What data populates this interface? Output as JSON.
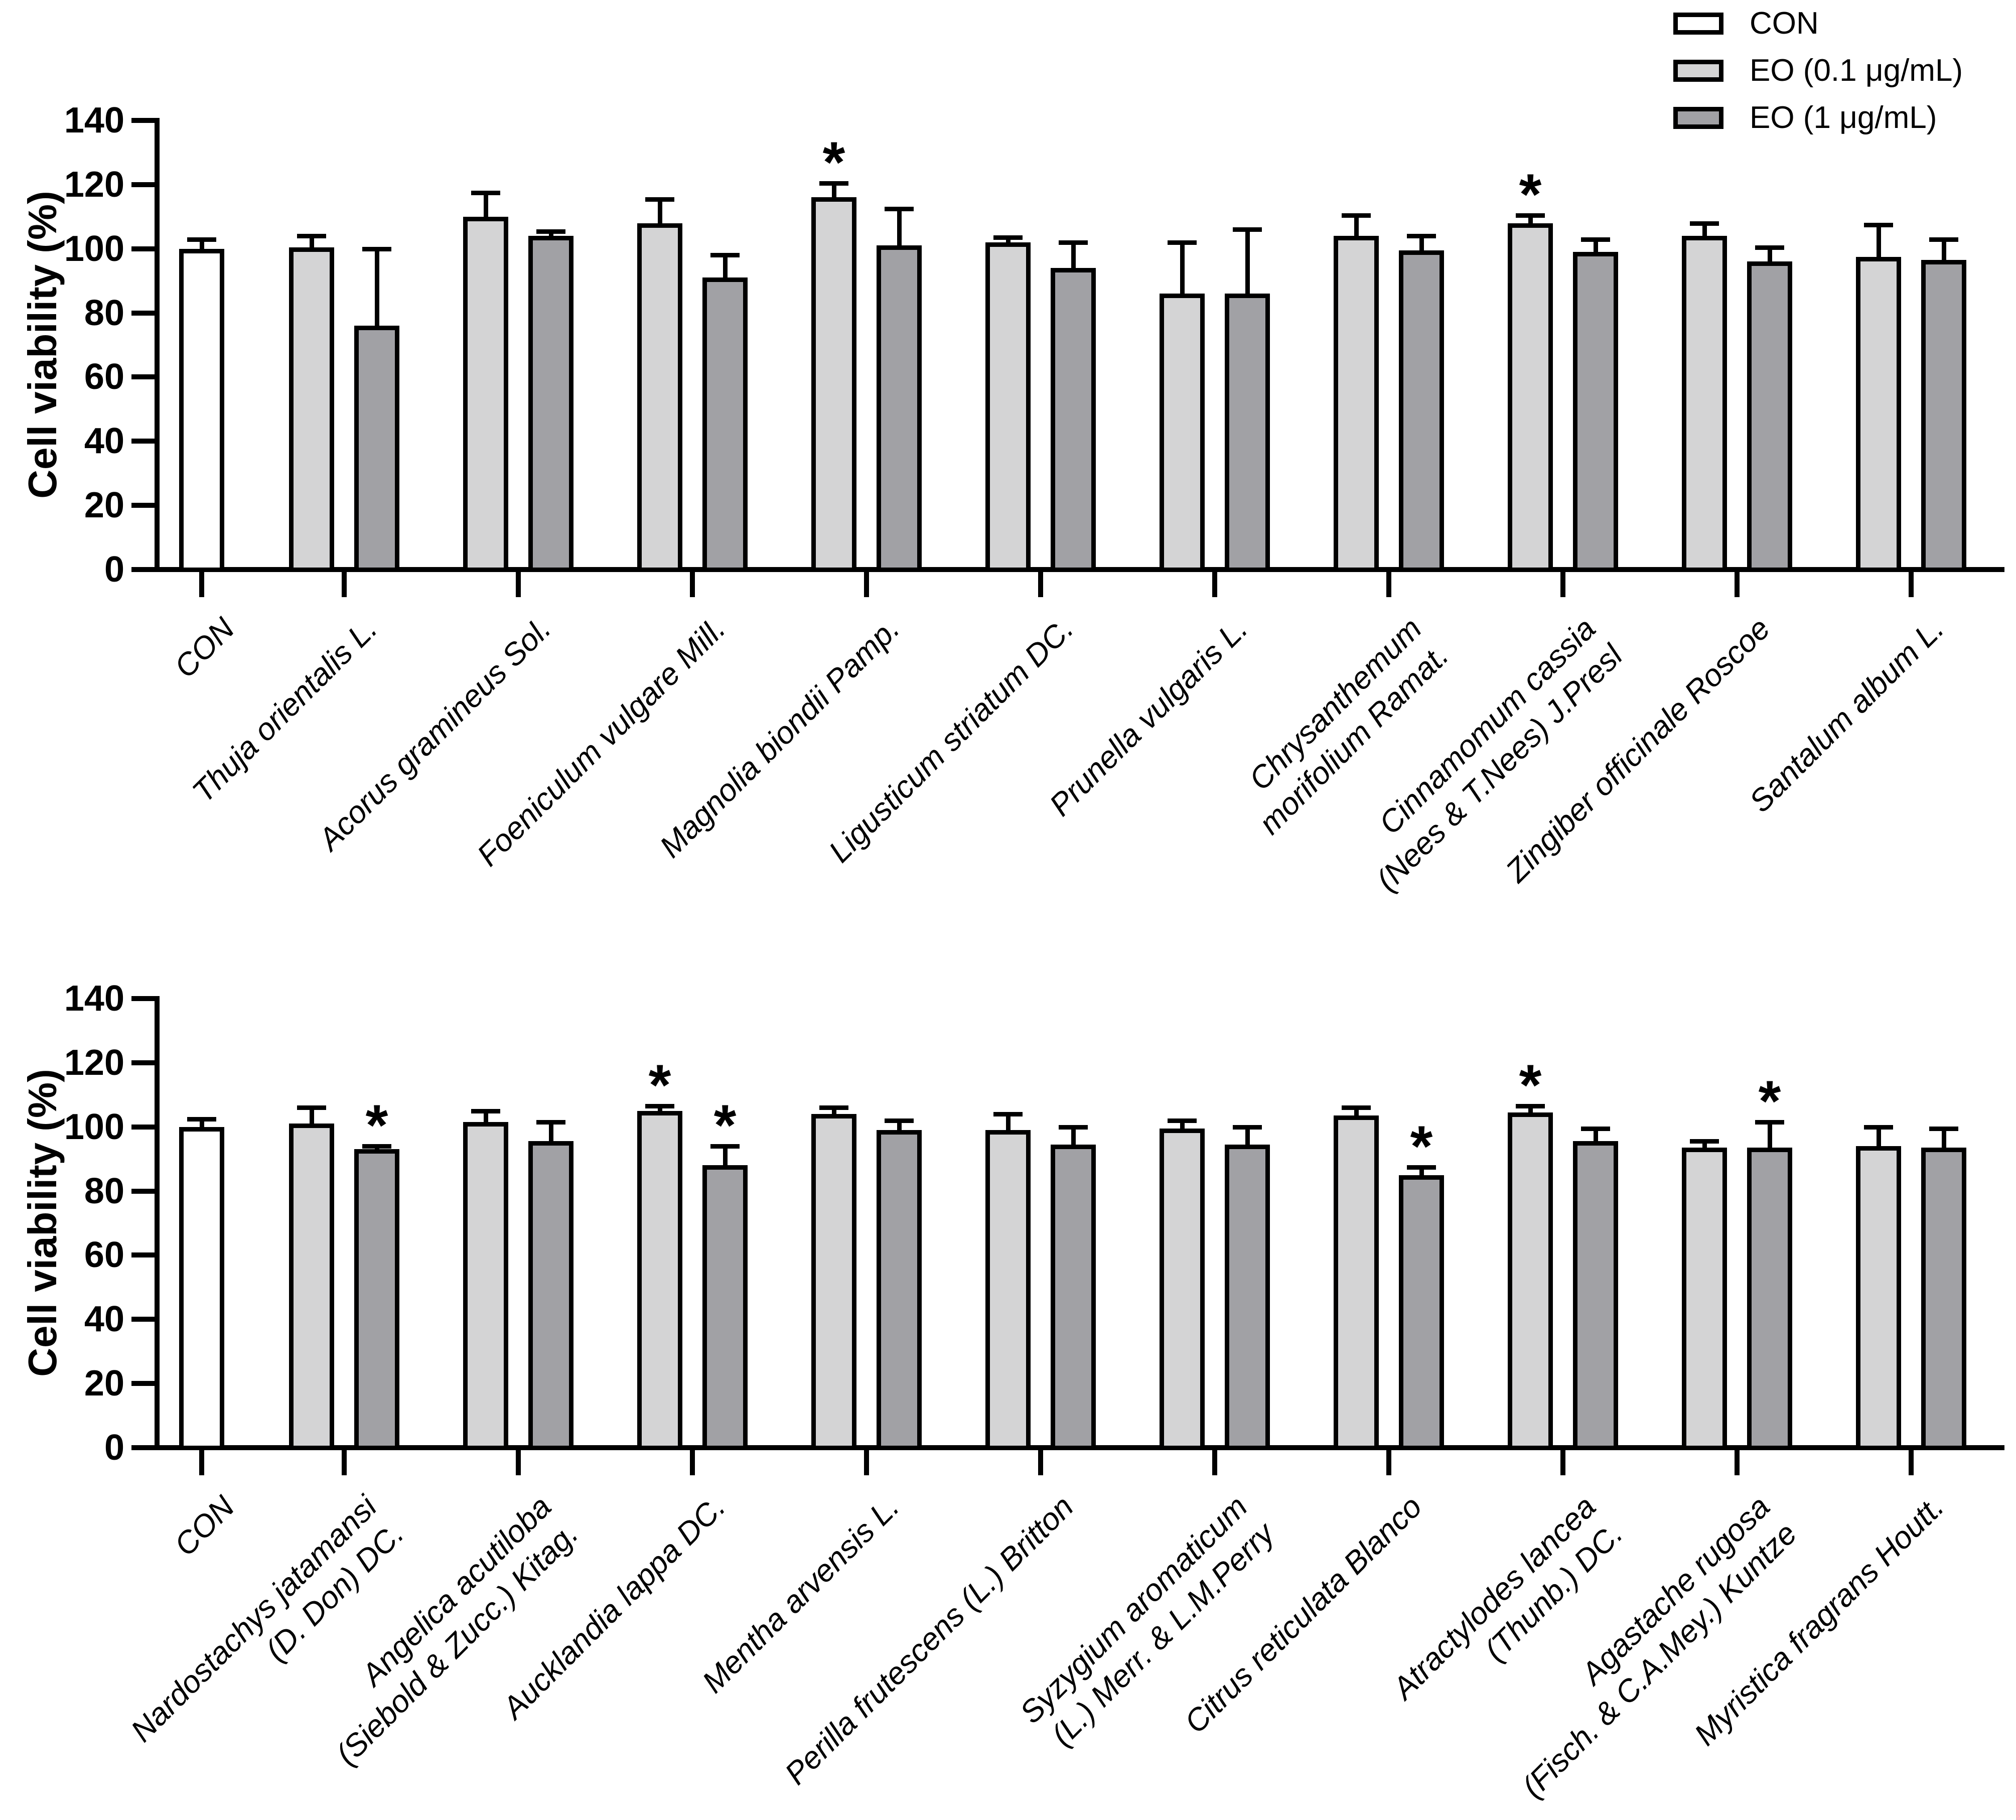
{
  "page": {
    "background": "#ffffff"
  },
  "colors": {
    "white": "#ffffff",
    "light": "#d4d4d5",
    "dark": "#a1a1a5",
    "stroke": "#000000"
  },
  "legend": {
    "position": "top-right",
    "items": [
      {
        "label": "CON",
        "fill_key": "white"
      },
      {
        "label": "EO (0.1 μg/mL)",
        "fill_key": "light"
      },
      {
        "label": "EO (1 μg/mL)",
        "fill_key": "dark"
      }
    ]
  },
  "chart_data": [
    {
      "id": "panel-top",
      "type": "bar",
      "title": "",
      "ylabel": "Cell viability (%)",
      "xlabel": "",
      "ylim": [
        0,
        140
      ],
      "yticks": [
        0,
        20,
        40,
        60,
        80,
        100,
        120,
        140
      ],
      "grid": false,
      "legend_position": "top-right",
      "series": [
        "CON",
        "EO (0.1 μg/mL)",
        "EO (1 μg/mL)"
      ],
      "groups": [
        {
          "label_lines": [
            "CON"
          ],
          "bars": [
            {
              "series": "CON",
              "fill": "white",
              "value": 100,
              "err": 3,
              "sig": false
            }
          ]
        },
        {
          "label_lines": [
            "Thuja orientalis L."
          ],
          "bars": [
            {
              "series": "EO (0.1 μg/mL)",
              "fill": "light",
              "value": 100.5,
              "err": 3.5,
              "sig": false
            },
            {
              "series": "EO (1 μg/mL)",
              "fill": "dark",
              "value": 76,
              "err": 24,
              "sig": false
            }
          ]
        },
        {
          "label_lines": [
            "Acorus gramineus Sol."
          ],
          "bars": [
            {
              "series": "EO (0.1 μg/mL)",
              "fill": "light",
              "value": 110,
              "err": 7.5,
              "sig": false
            },
            {
              "series": "EO (1 μg/mL)",
              "fill": "dark",
              "value": 104,
              "err": 1.5,
              "sig": false
            }
          ]
        },
        {
          "label_lines": [
            "Foeniculum vulgare Mill."
          ],
          "bars": [
            {
              "series": "EO (0.1 μg/mL)",
              "fill": "light",
              "value": 108,
              "err": 7.5,
              "sig": false
            },
            {
              "series": "EO (1 μg/mL)",
              "fill": "dark",
              "value": 91,
              "err": 7,
              "sig": false
            }
          ]
        },
        {
          "label_lines": [
            "Magnolia biondii Pamp."
          ],
          "bars": [
            {
              "series": "EO (0.1 μg/mL)",
              "fill": "light",
              "value": 116,
              "err": 4.5,
              "sig": true
            },
            {
              "series": "EO (1 μg/mL)",
              "fill": "dark",
              "value": 101,
              "err": 11.5,
              "sig": false
            }
          ]
        },
        {
          "label_lines": [
            "Ligusticum striatum DC."
          ],
          "bars": [
            {
              "series": "EO (0.1 μg/mL)",
              "fill": "light",
              "value": 102,
              "err": 1.5,
              "sig": false
            },
            {
              "series": "EO (1 μg/mL)",
              "fill": "dark",
              "value": 94,
              "err": 8,
              "sig": false
            }
          ]
        },
        {
          "label_lines": [
            "Prunella vulgaris L."
          ],
          "bars": [
            {
              "series": "EO (0.1 μg/mL)",
              "fill": "light",
              "value": 86,
              "err": 16,
              "sig": false
            },
            {
              "series": "EO (1 μg/mL)",
              "fill": "dark",
              "value": 86,
              "err": 20,
              "sig": false
            }
          ]
        },
        {
          "label_lines": [
            "Chrysanthemum",
            "morifolium Ramat."
          ],
          "bars": [
            {
              "series": "EO (0.1 μg/mL)",
              "fill": "light",
              "value": 104,
              "err": 6.5,
              "sig": false
            },
            {
              "series": "EO (1 μg/mL)",
              "fill": "dark",
              "value": 99.5,
              "err": 4.5,
              "sig": false
            }
          ]
        },
        {
          "label_lines": [
            "Cinnamomum cassia",
            "(Nees & T.Nees) J.Presl"
          ],
          "bars": [
            {
              "series": "EO (0.1 μg/mL)",
              "fill": "light",
              "value": 108,
              "err": 2.5,
              "sig": true
            },
            {
              "series": "EO (1 μg/mL)",
              "fill": "dark",
              "value": 99,
              "err": 4,
              "sig": false
            }
          ]
        },
        {
          "label_lines": [
            "Zingiber officinale Roscoe"
          ],
          "bars": [
            {
              "series": "EO (0.1 μg/mL)",
              "fill": "light",
              "value": 104,
              "err": 4,
              "sig": false
            },
            {
              "series": "EO (1 μg/mL)",
              "fill": "dark",
              "value": 96,
              "err": 4.5,
              "sig": false
            }
          ]
        },
        {
          "label_lines": [
            "Santalum album L."
          ],
          "bars": [
            {
              "series": "EO (0.1 μg/mL)",
              "fill": "light",
              "value": 97.5,
              "err": 10,
              "sig": false
            },
            {
              "series": "EO (1 μg/mL)",
              "fill": "dark",
              "value": 96.5,
              "err": 6.5,
              "sig": false
            }
          ]
        }
      ]
    },
    {
      "id": "panel-bottom",
      "type": "bar",
      "title": "",
      "ylabel": "Cell viability (%)",
      "xlabel": "",
      "ylim": [
        0,
        140
      ],
      "yticks": [
        0,
        20,
        40,
        60,
        80,
        100,
        120,
        140
      ],
      "grid": false,
      "legend_position": "none",
      "series": [
        "CON",
        "EO (0.1 μg/mL)",
        "EO (1 μg/mL)"
      ],
      "groups": [
        {
          "label_lines": [
            "CON"
          ],
          "bars": [
            {
              "series": "CON",
              "fill": "white",
              "value": 100,
              "err": 2.5,
              "sig": false
            }
          ]
        },
        {
          "label_lines": [
            "Nardostachys jatamansi",
            "(D. Don) DC."
          ],
          "bars": [
            {
              "series": "EO (0.1 μg/mL)",
              "fill": "light",
              "value": 101,
              "err": 5,
              "sig": false
            },
            {
              "series": "EO (1 μg/mL)",
              "fill": "dark",
              "value": 93,
              "err": 1,
              "sig": true
            }
          ]
        },
        {
          "label_lines": [
            "Angelica acutiloba",
            "(Siebold & Zucc.) Kitag."
          ],
          "bars": [
            {
              "series": "EO (0.1 μg/mL)",
              "fill": "light",
              "value": 101.5,
              "err": 3.5,
              "sig": false
            },
            {
              "series": "EO (1 μg/mL)",
              "fill": "dark",
              "value": 95.5,
              "err": 6,
              "sig": false
            }
          ]
        },
        {
          "label_lines": [
            "Aucklandia lappa DC."
          ],
          "bars": [
            {
              "series": "EO (0.1 μg/mL)",
              "fill": "light",
              "value": 105,
              "err": 1.5,
              "sig": true
            },
            {
              "series": "EO (1 μg/mL)",
              "fill": "dark",
              "value": 88,
              "err": 6,
              "sig": true
            }
          ]
        },
        {
          "label_lines": [
            "Mentha arvensis L."
          ],
          "bars": [
            {
              "series": "EO (0.1 μg/mL)",
              "fill": "light",
              "value": 104,
              "err": 2,
              "sig": false
            },
            {
              "series": "EO (1 μg/mL)",
              "fill": "dark",
              "value": 99,
              "err": 3,
              "sig": false
            }
          ]
        },
        {
          "label_lines": [
            "Perilla frutescens (L.) Britton"
          ],
          "bars": [
            {
              "series": "EO (0.1 μg/mL)",
              "fill": "light",
              "value": 99,
              "err": 5,
              "sig": false
            },
            {
              "series": "EO (1 μg/mL)",
              "fill": "dark",
              "value": 94.5,
              "err": 5.5,
              "sig": false
            }
          ]
        },
        {
          "label_lines": [
            "Syzygium aromaticum",
            "(L.) Merr. & L.M.Perry"
          ],
          "bars": [
            {
              "series": "EO (0.1 μg/mL)",
              "fill": "light",
              "value": 99.5,
              "err": 2.5,
              "sig": false
            },
            {
              "series": "EO (1 μg/mL)",
              "fill": "dark",
              "value": 94.5,
              "err": 5.5,
              "sig": false
            }
          ]
        },
        {
          "label_lines": [
            "Citrus reticulata Blanco"
          ],
          "bars": [
            {
              "series": "EO (0.1 μg/mL)",
              "fill": "light",
              "value": 103.5,
              "err": 2.5,
              "sig": false
            },
            {
              "series": "EO (1 μg/mL)",
              "fill": "dark",
              "value": 85,
              "err": 2.5,
              "sig": true
            }
          ]
        },
        {
          "label_lines": [
            "Atractylodes lancea",
            "(Thunb.) DC."
          ],
          "bars": [
            {
              "series": "EO (0.1 μg/mL)",
              "fill": "light",
              "value": 104.5,
              "err": 2,
              "sig": true
            },
            {
              "series": "EO (1 μg/mL)",
              "fill": "dark",
              "value": 95.5,
              "err": 4,
              "sig": false
            }
          ]
        },
        {
          "label_lines": [
            "Agastache rugosa",
            "(Fisch. & C.A.Mey.) Kuntze"
          ],
          "bars": [
            {
              "series": "EO (0.1 μg/mL)",
              "fill": "light",
              "value": 93.5,
              "err": 2,
              "sig": false
            },
            {
              "series": "EO (1 μg/mL)",
              "fill": "dark",
              "value": 93.5,
              "err": 8,
              "sig": true
            }
          ]
        },
        {
          "label_lines": [
            "Myristica fragrans Houtt."
          ],
          "bars": [
            {
              "series": "EO (0.1 μg/mL)",
              "fill": "light",
              "value": 94,
              "err": 6,
              "sig": false
            },
            {
              "series": "EO (1 μg/mL)",
              "fill": "dark",
              "value": 93.5,
              "err": 6,
              "sig": false
            }
          ]
        }
      ]
    }
  ]
}
